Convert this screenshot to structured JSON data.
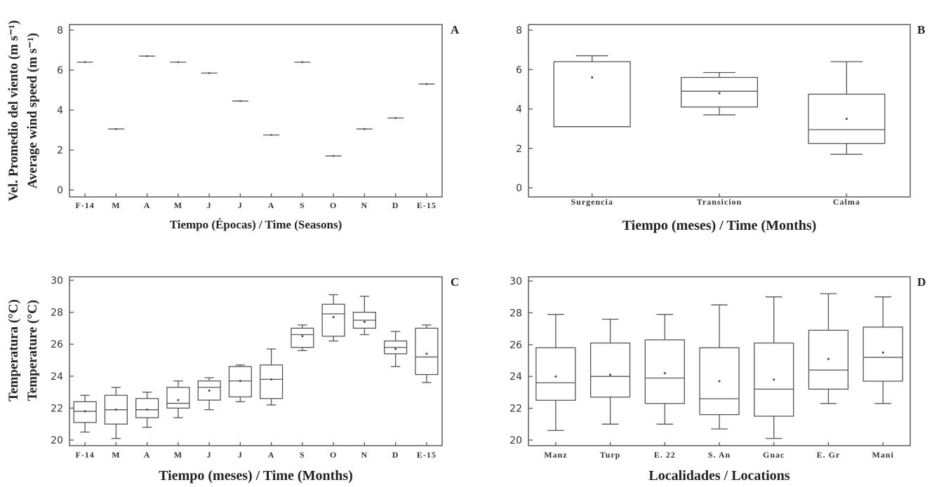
{
  "chart_data": [
    {
      "id": "A",
      "type": "box",
      "panel_label": "A",
      "ylabel_lines": [
        "Vel. Promedio del viento (m s⁻¹)",
        "Average wind speed (m s⁻¹)"
      ],
      "xlabel": "Tiempo (Épocas) / Time (Seasons)",
      "ylim": [
        0,
        8
      ],
      "yticks": [
        0,
        2,
        4,
        6,
        8
      ],
      "categories": [
        "F-14",
        "M",
        "A",
        "M",
        "J",
        "J",
        "A",
        "S",
        "O",
        "N",
        "D",
        "E-15"
      ],
      "boxes": [
        {
          "min": 6.4,
          "q1": 6.4,
          "median": 6.4,
          "q3": 6.4,
          "max": 6.4,
          "mean": 6.4
        },
        {
          "min": 3.05,
          "q1": 3.05,
          "median": 3.05,
          "q3": 3.05,
          "max": 3.05,
          "mean": 3.05
        },
        {
          "min": 6.7,
          "q1": 6.7,
          "median": 6.7,
          "q3": 6.7,
          "max": 6.7,
          "mean": 6.7
        },
        {
          "min": 6.4,
          "q1": 6.4,
          "median": 6.4,
          "q3": 6.4,
          "max": 6.4,
          "mean": 6.4
        },
        {
          "min": 5.85,
          "q1": 5.85,
          "median": 5.85,
          "q3": 5.85,
          "max": 5.85,
          "mean": 5.85
        },
        {
          "min": 4.45,
          "q1": 4.45,
          "median": 4.45,
          "q3": 4.45,
          "max": 4.45,
          "mean": 4.45
        },
        {
          "min": 2.75,
          "q1": 2.75,
          "median": 2.75,
          "q3": 2.75,
          "max": 2.75,
          "mean": 2.75
        },
        {
          "min": 6.4,
          "q1": 6.4,
          "median": 6.4,
          "q3": 6.4,
          "max": 6.4,
          "mean": 6.4
        },
        {
          "min": 1.7,
          "q1": 1.7,
          "median": 1.7,
          "q3": 1.7,
          "max": 1.7,
          "mean": 1.7
        },
        {
          "min": 3.05,
          "q1": 3.05,
          "median": 3.05,
          "q3": 3.05,
          "max": 3.05,
          "mean": 3.05
        },
        {
          "min": 3.6,
          "q1": 3.6,
          "median": 3.6,
          "q3": 3.6,
          "max": 3.6,
          "mean": 3.6
        },
        {
          "min": 5.3,
          "q1": 5.3,
          "median": 5.3,
          "q3": 5.3,
          "max": 5.3,
          "mean": 5.3
        }
      ]
    },
    {
      "id": "B",
      "type": "box",
      "panel_label": "B",
      "ylabel_lines": [],
      "xlabel": "Tiempo (meses) / Time (Months)",
      "ylim": [
        0,
        8
      ],
      "yticks": [
        0,
        2,
        4,
        6,
        8
      ],
      "categories": [
        "Surgencia",
        "Transicion",
        "Calma"
      ],
      "boxes": [
        {
          "min": 3.1,
          "q1": 3.1,
          "median": 3.1,
          "q3": 6.4,
          "max": 6.7,
          "mean": 5.6
        },
        {
          "min": 3.7,
          "q1": 4.1,
          "median": 4.9,
          "q3": 5.6,
          "max": 5.85,
          "mean": 4.8
        },
        {
          "min": 1.7,
          "q1": 2.25,
          "median": 2.95,
          "q3": 4.75,
          "max": 6.4,
          "mean": 3.5
        }
      ]
    },
    {
      "id": "C",
      "type": "box",
      "panel_label": "C",
      "ylabel_lines": [
        "Temperatura (°C)",
        "Temperature (°C)"
      ],
      "xlabel": "Tiempo (meses) / Time (Months)",
      "ylim": [
        20,
        30
      ],
      "yticks": [
        20,
        22,
        24,
        26,
        28,
        30
      ],
      "categories": [
        "F-14",
        "M",
        "A",
        "M",
        "J",
        "J",
        "A",
        "S",
        "O",
        "N",
        "D",
        "E-15"
      ],
      "boxes": [
        {
          "min": 20.5,
          "q1": 21.1,
          "median": 21.8,
          "q3": 22.4,
          "max": 22.8,
          "mean": 21.8
        },
        {
          "min": 20.1,
          "q1": 21.0,
          "median": 21.9,
          "q3": 22.8,
          "max": 23.3,
          "mean": 21.9
        },
        {
          "min": 20.8,
          "q1": 21.4,
          "median": 21.9,
          "q3": 22.6,
          "max": 23.0,
          "mean": 21.9
        },
        {
          "min": 21.4,
          "q1": 22.0,
          "median": 22.3,
          "q3": 23.3,
          "max": 23.7,
          "mean": 22.5
        },
        {
          "min": 21.9,
          "q1": 22.5,
          "median": 23.3,
          "q3": 23.7,
          "max": 23.9,
          "mean": 23.1
        },
        {
          "min": 22.4,
          "q1": 22.7,
          "median": 23.7,
          "q3": 24.6,
          "max": 24.7,
          "mean": 23.7
        },
        {
          "min": 22.2,
          "q1": 22.6,
          "median": 23.8,
          "q3": 24.7,
          "max": 25.7,
          "mean": 23.8
        },
        {
          "min": 25.6,
          "q1": 25.8,
          "median": 26.6,
          "q3": 27.0,
          "max": 27.2,
          "mean": 26.5
        },
        {
          "min": 26.2,
          "q1": 26.5,
          "median": 27.9,
          "q3": 28.5,
          "max": 29.1,
          "mean": 27.7
        },
        {
          "min": 26.6,
          "q1": 27.0,
          "median": 27.5,
          "q3": 28.0,
          "max": 29.0,
          "mean": 27.4
        },
        {
          "min": 24.6,
          "q1": 25.4,
          "median": 25.8,
          "q3": 26.2,
          "max": 26.8,
          "mean": 25.7
        },
        {
          "min": 23.6,
          "q1": 24.1,
          "median": 25.2,
          "q3": 27.0,
          "max": 27.2,
          "mean": 25.4
        }
      ]
    },
    {
      "id": "D",
      "type": "box",
      "panel_label": "D",
      "ylabel_lines": [],
      "xlabel": "Localidades / Locations",
      "ylim": [
        20,
        30
      ],
      "yticks": [
        20,
        22,
        24,
        26,
        28,
        30
      ],
      "categories": [
        "Manz",
        "Turp",
        "E. 22",
        "S. An",
        "Guac",
        "E. Gr",
        "Mani"
      ],
      "boxes": [
        {
          "min": 20.6,
          "q1": 22.5,
          "median": 23.6,
          "q3": 25.8,
          "max": 27.9,
          "mean": 24.0
        },
        {
          "min": 21.0,
          "q1": 22.7,
          "median": 24.0,
          "q3": 26.1,
          "max": 27.6,
          "mean": 24.1
        },
        {
          "min": 21.0,
          "q1": 22.3,
          "median": 23.9,
          "q3": 26.3,
          "max": 27.9,
          "mean": 24.2
        },
        {
          "min": 20.7,
          "q1": 21.6,
          "median": 22.6,
          "q3": 25.8,
          "max": 28.5,
          "mean": 23.7
        },
        {
          "min": 20.1,
          "q1": 21.5,
          "median": 23.2,
          "q3": 26.1,
          "max": 29.0,
          "mean": 23.8
        },
        {
          "min": 22.3,
          "q1": 23.2,
          "median": 24.4,
          "q3": 26.9,
          "max": 29.2,
          "mean": 25.1
        },
        {
          "min": 22.3,
          "q1": 23.7,
          "median": 25.2,
          "q3": 27.1,
          "max": 29.0,
          "mean": 25.5
        }
      ]
    }
  ]
}
